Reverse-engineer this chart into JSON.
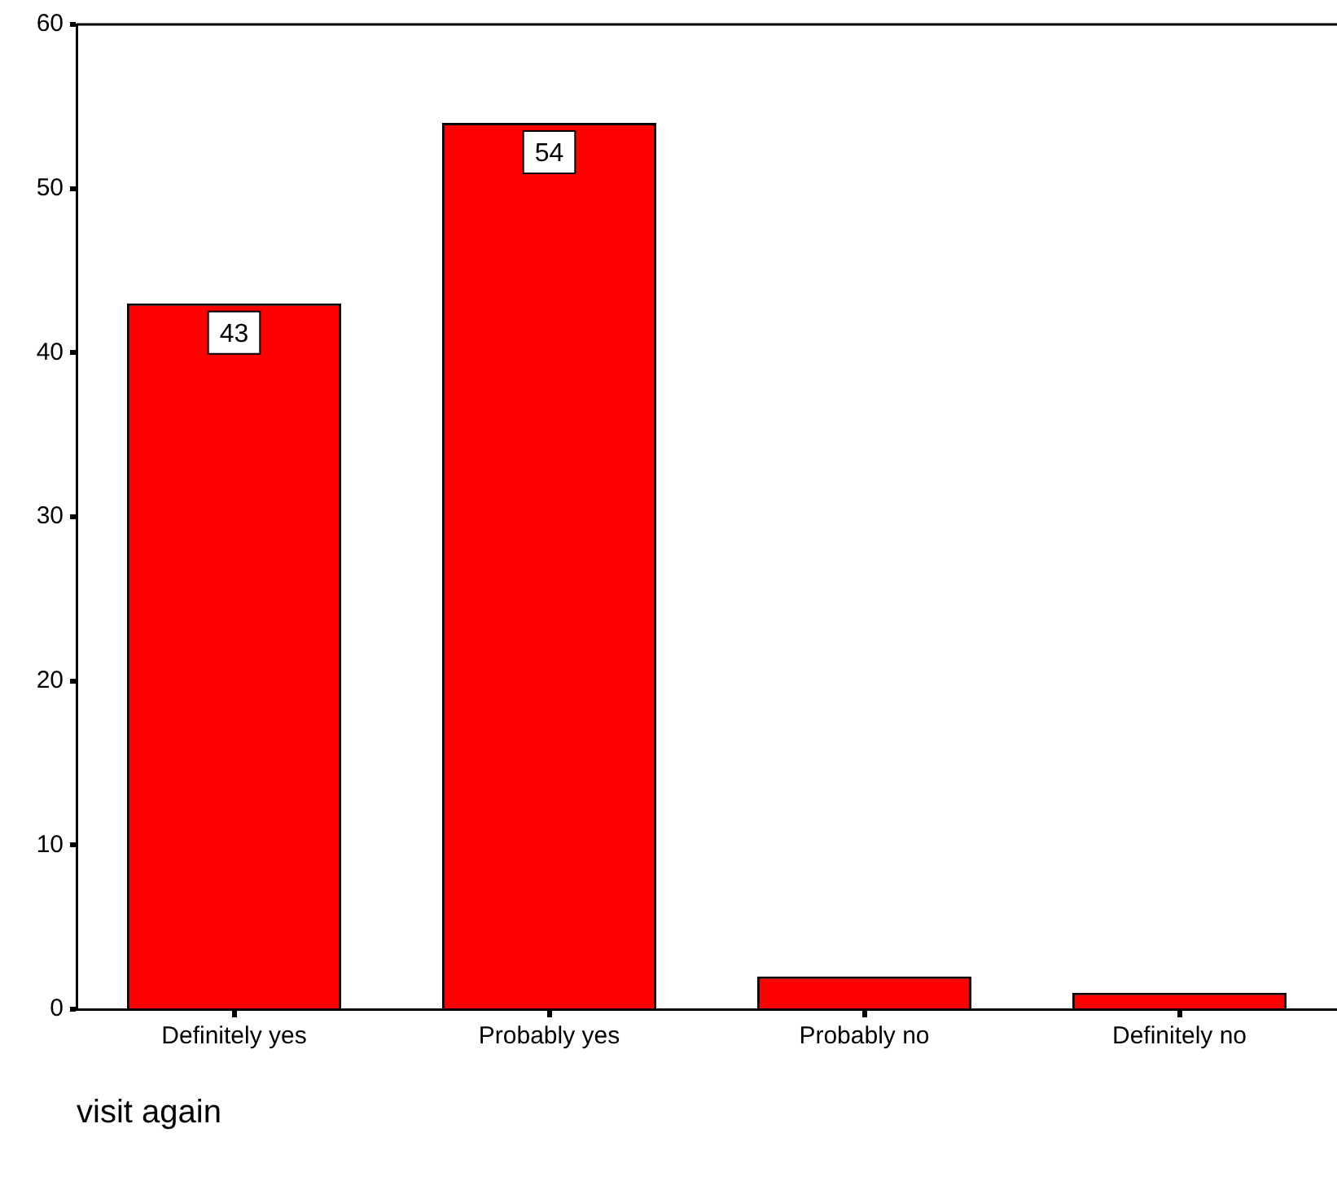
{
  "chart_data": {
    "type": "bar",
    "xlabel": "visit again",
    "categories": [
      "Definitely yes",
      "Probably yes",
      "Probably no",
      "Definitely no"
    ],
    "values": [
      43,
      54,
      2,
      1
    ],
    "value_labels": [
      "43",
      "54",
      null,
      null
    ],
    "color": "#ff0000",
    "ylim": [
      0,
      60
    ],
    "yticks": [
      0,
      10,
      20,
      30,
      40,
      50,
      60
    ],
    "grid": false,
    "legend": false
  }
}
